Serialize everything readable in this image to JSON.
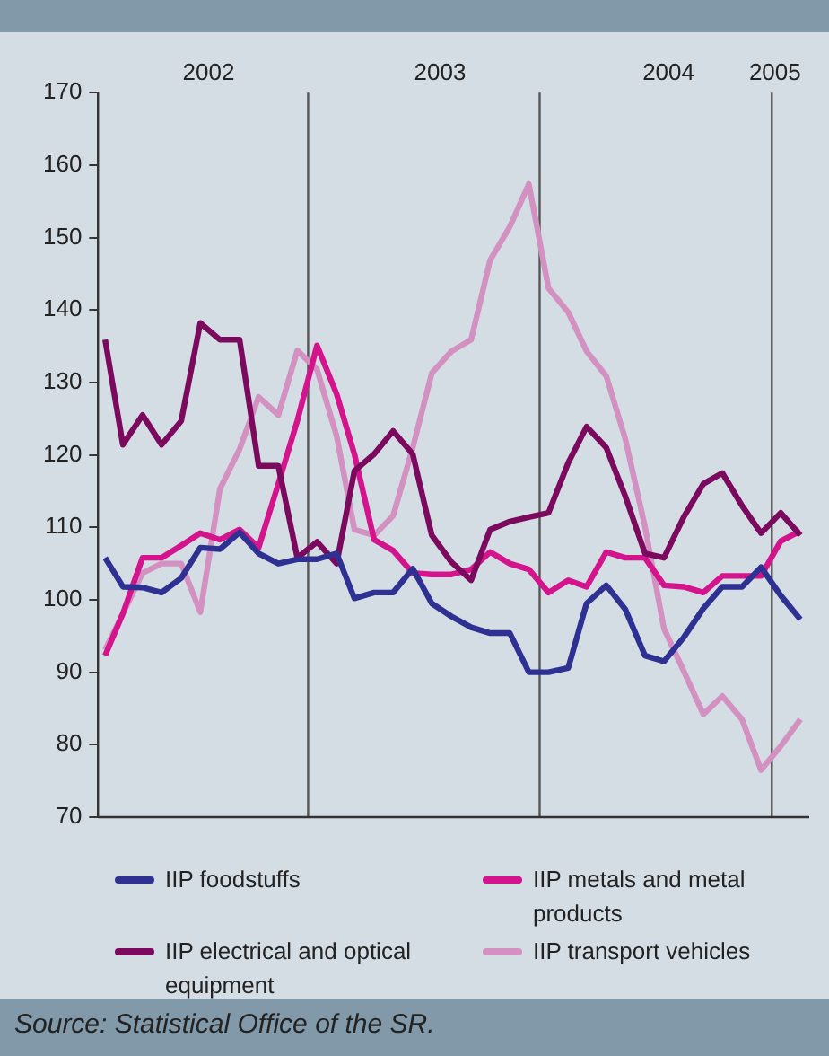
{
  "chart_data": {
    "type": "line",
    "x": [
      "2002-02-15",
      "2002-03-15",
      "2002-04-15",
      "2002-05-15",
      "2002-06-15",
      "2002-07-15",
      "2002-08-15",
      "2002-09-15",
      "2002-10-15",
      "2002-11-15",
      "2002-12-15",
      "2003-01-15",
      "2003-02-15",
      "2003-03-15",
      "2003-04-15",
      "2003-05-15",
      "2003-06-15",
      "2003-07-15",
      "2003-08-15",
      "2003-09-15",
      "2003-10-15",
      "2003-11-15",
      "2003-12-15",
      "2004-01-15",
      "2004-02-15",
      "2004-03-15",
      "2004-04-15",
      "2004-05-15",
      "2004-06-15",
      "2004-07-15",
      "2004-08-15",
      "2004-09-15",
      "2004-10-15",
      "2004-11-15",
      "2004-12-15",
      "2005-01-15",
      "2005-02-15"
    ],
    "series": [
      {
        "name": "IIP foodstuffs",
        "color": "#2e3192",
        "values": [
          105.8,
          101.8,
          101.7,
          101,
          103,
          107.2,
          107,
          109.3,
          106.4,
          105,
          105.6,
          105.6,
          106.4,
          100.2,
          101,
          101,
          104.3,
          99.5,
          97.7,
          96.2,
          95.4,
          95.4,
          90,
          90,
          90.6,
          99.5,
          102,
          98.7,
          92.3,
          91.5,
          94.8,
          98.8,
          101.8,
          101.8,
          104.5,
          100.6,
          97.3
        ]
      },
      {
        "name": "IIP electrical and optical equipment",
        "color": "#7b0a5e",
        "values": [
          135.9,
          121.4,
          125.5,
          121.4,
          124.7,
          138.2,
          135.9,
          135.9,
          118.5,
          118.5,
          105.8,
          108,
          105,
          117.8,
          120.1,
          123.3,
          120.1,
          108.9,
          105.2,
          102.7,
          109.7,
          110.8,
          111.4,
          112,
          118.9,
          123.9,
          121,
          114.3,
          106.4,
          105.8,
          111.4,
          116,
          117.5,
          113,
          109.2,
          112,
          108.9
        ]
      },
      {
        "name": "IIP metals and metal products",
        "color": "#d4148c",
        "values": [
          92.3,
          98.1,
          105.8,
          105.8,
          107.5,
          109.2,
          108.3,
          109.7,
          107.2,
          116,
          124.7,
          135.1,
          128.4,
          120.1,
          108.3,
          106.8,
          103.7,
          103.5,
          103.5,
          104.2,
          106.6,
          105,
          104.2,
          101,
          102.7,
          101.8,
          106.6,
          105.8,
          105.8,
          102,
          101.8,
          101,
          103.3,
          103.3,
          103.3,
          108.1,
          109.5
        ]
      },
      {
        "name": "IIP transport vehicles",
        "color": "#d291c0",
        "values": [
          93.1,
          98.1,
          103.7,
          105,
          105,
          98.3,
          115.3,
          120.8,
          128,
          125.5,
          134.4,
          131.8,
          122.6,
          109.7,
          108.9,
          111.6,
          121,
          131.3,
          134.3,
          135.9,
          146.9,
          151.5,
          157.4,
          143,
          139.7,
          134.3,
          130.9,
          122.2,
          110.1,
          96,
          90.2,
          84.2,
          86.7,
          83.5,
          76.5,
          79.8,
          83.5
        ]
      }
    ],
    "xlim": [
      "2002-02-04",
      "2005-03-01"
    ],
    "xticks": [
      {
        "value": "2002-07-28",
        "label": "2002"
      },
      {
        "value": "2003-07-28",
        "label": "2003"
      },
      {
        "value": "2004-07-22",
        "label": "2004"
      },
      {
        "value": "2005-01-06",
        "label": "2005"
      }
    ],
    "ylim": [
      70,
      170
    ],
    "yticks": [
      70,
      80,
      90,
      100,
      110,
      120,
      130,
      140,
      150,
      160,
      170
    ],
    "ref_lines": [
      {
        "axis": "x",
        "value": "2003-01-01",
        "color": "#555555"
      },
      {
        "axis": "x",
        "value": "2004-01-01",
        "color": "#555555"
      },
      {
        "axis": "x",
        "value": "2005-01-01",
        "color": "#555555"
      }
    ],
    "grid": false,
    "legend": "bottom",
    "marker": "none",
    "line_style": "solid",
    "annotations": [
      "Source: Statistical Office of the SR."
    ]
  }
}
